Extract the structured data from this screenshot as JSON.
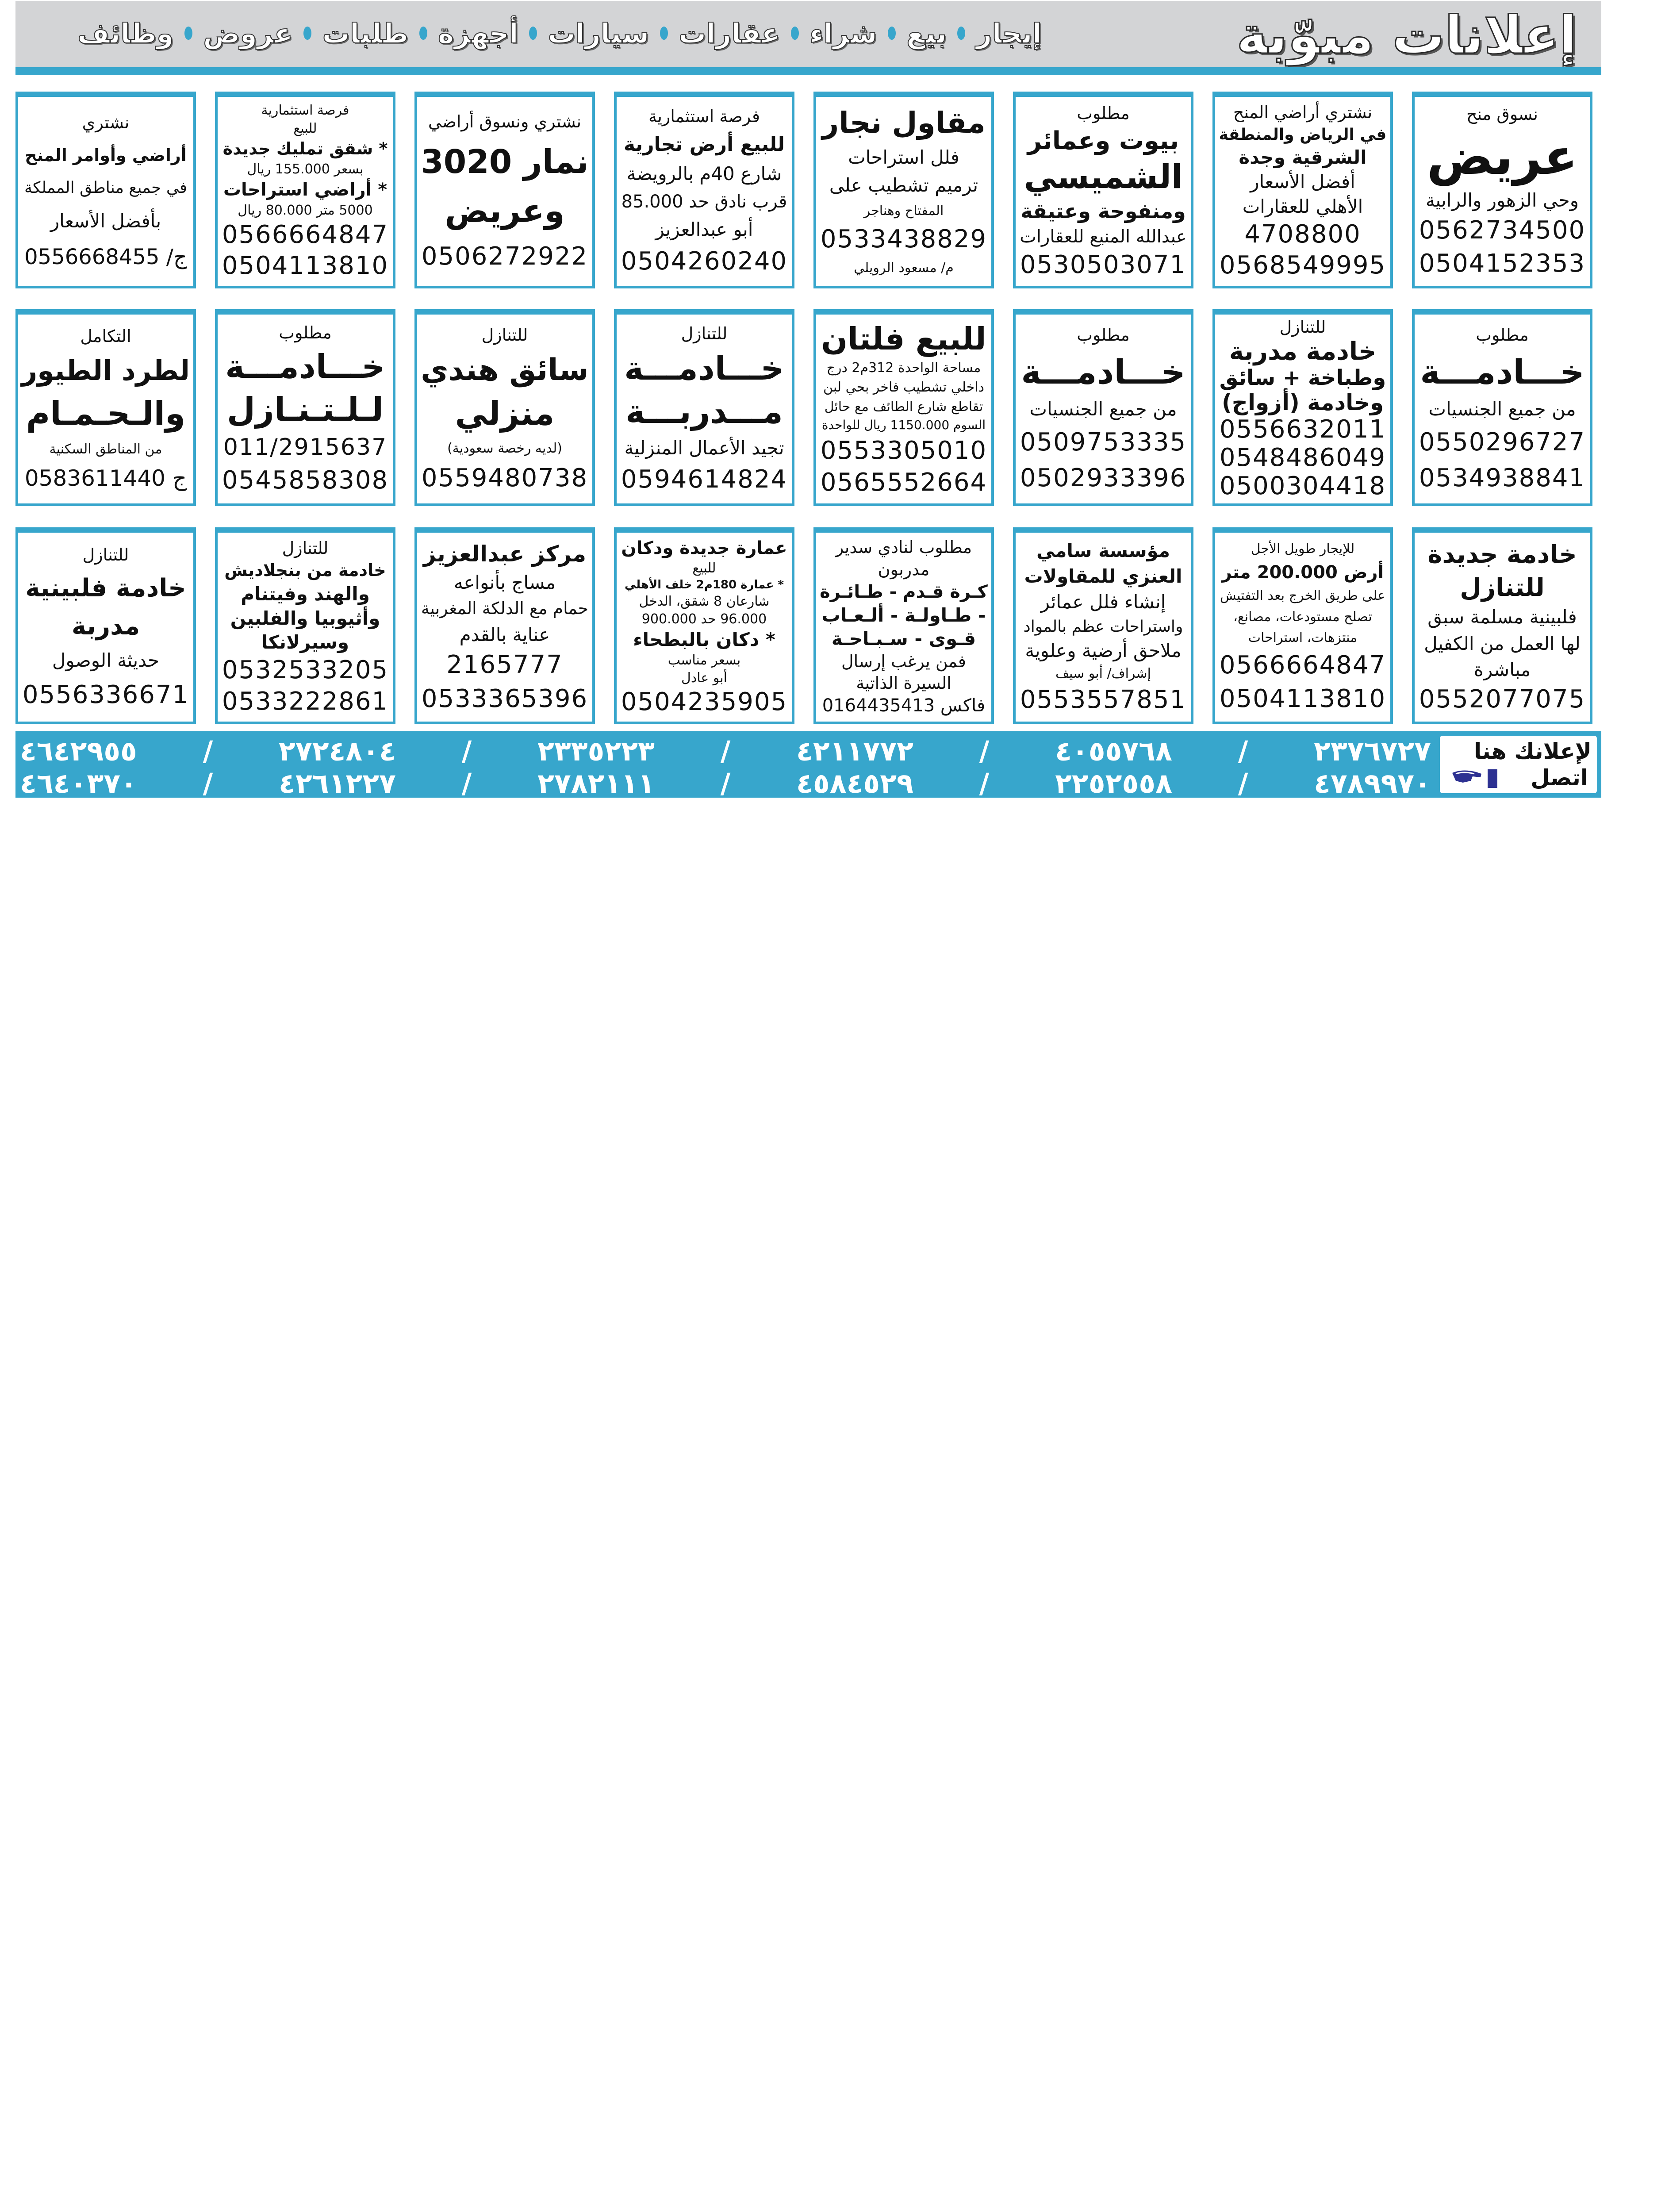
{
  "header": {
    "title": "إعلانات مبوّبة",
    "categories": [
      "إيجار",
      "بيع",
      "شراء",
      "عقارات",
      "سيارات",
      "أجهزة",
      "طلبات",
      "عروض",
      "وظائف"
    ],
    "accent_color": "#37a6cc",
    "band_color": "#d3d4d6"
  },
  "rows": [
    [
      {
        "lines": [
          {
            "t": "نسوق منح",
            "r": "label"
          },
          {
            "t": "عريض",
            "r": "h1"
          },
          {
            "t": "وحي الزهور والرابية",
            "r": "body"
          },
          {
            "t": "0562734500",
            "r": "phone"
          },
          {
            "t": "0504152353",
            "r": "phone"
          }
        ]
      },
      {
        "lines": [
          {
            "t": "نشتري أراضي المنح",
            "r": "label"
          },
          {
            "t": "في الرياض والمنطقة",
            "r": "bold"
          },
          {
            "t": "الشرقية وجدة",
            "r": "bold"
          },
          {
            "t": "أفضل الأسعار",
            "r": "body"
          },
          {
            "t": "الأهلي للعقارات",
            "r": "body"
          },
          {
            "t": "4708800",
            "r": "phone"
          },
          {
            "t": "0568549995",
            "r": "phone"
          }
        ]
      },
      {
        "lines": [
          {
            "t": "مطلوب",
            "r": "label"
          },
          {
            "t": "بيوت وعمائر",
            "r": "h3"
          },
          {
            "t": "الشميسي",
            "r": "h2"
          },
          {
            "t": "ومنفوحة وعتيقة",
            "r": "h3"
          },
          {
            "t": "عبدالله المنيع للعقارات",
            "r": "body"
          },
          {
            "t": "0530503071",
            "r": "phone"
          }
        ]
      },
      {
        "lines": [
          {
            "t": "مقاول نجار",
            "r": "h2"
          },
          {
            "t": "فلل استراحات",
            "r": "body"
          },
          {
            "t": "ترميم تشطيب على",
            "r": "body"
          },
          {
            "t": "المفتاح وهناجر",
            "r": "small"
          },
          {
            "t": "0533438829",
            "r": "phone"
          },
          {
            "t": "م/ مسعود الرويلي",
            "r": "small"
          }
        ]
      },
      {
        "lines": [
          {
            "t": "فرصة استثمارية",
            "r": "label"
          },
          {
            "t": "للبيع أرض تجارية",
            "r": "h3"
          },
          {
            "t": "شارع 40م بالرويضة",
            "r": "body"
          },
          {
            "t": "قرب نادق حد 85.000",
            "r": "body"
          },
          {
            "t": "أبو عبدالعزيز",
            "r": "body"
          },
          {
            "t": "0504260240",
            "r": "phone"
          }
        ]
      },
      {
        "lines": [
          {
            "t": "نشتري ونسوق أراضي",
            "r": "label"
          },
          {
            "t": "نمار 3020",
            "r": "h2"
          },
          {
            "t": "وعريض",
            "r": "h2"
          },
          {
            "t": "0506272922",
            "r": "phone"
          }
        ]
      },
      {
        "lines": [
          {
            "t": "فرصة استثمارية",
            "r": "small"
          },
          {
            "t": "للبيع",
            "r": "small"
          },
          {
            "t": "* شقق تمليك جديدة",
            "r": "bold"
          },
          {
            "t": "بسعر 155.000 ريال",
            "r": "small"
          },
          {
            "t": "* أراضي استراحات",
            "r": "bold"
          },
          {
            "t": "5000 متر 80.000 ريال",
            "r": "small"
          },
          {
            "t": "0566664847",
            "r": "phone"
          },
          {
            "t": "0504113810",
            "r": "phone"
          }
        ]
      },
      {
        "lines": [
          {
            "t": "نشتري",
            "r": "label"
          },
          {
            "t": "أراضي وأوامر المنح",
            "r": "h3"
          },
          {
            "t": "في جميع مناطق المملكة",
            "r": "body"
          },
          {
            "t": "بأفضل الأسعار",
            "r": "body"
          },
          {
            "t": "ج/ 0556668455",
            "r": "phone"
          }
        ]
      }
    ],
    [
      {
        "lines": [
          {
            "t": "مطلوب",
            "r": "label"
          },
          {
            "t": "خـــادمـــة",
            "r": "h1"
          },
          {
            "t": "من جميع الجنسيات",
            "r": "body"
          },
          {
            "t": "0550296727",
            "r": "phone"
          },
          {
            "t": "0534938841",
            "r": "phone"
          }
        ]
      },
      {
        "lines": [
          {
            "t": "للتنازل",
            "r": "label"
          },
          {
            "t": "خادمة مدربة",
            "r": "h3"
          },
          {
            "t": "وطباخة + سائق",
            "r": "h3"
          },
          {
            "t": "وخادمة (أزواج)",
            "r": "h3"
          },
          {
            "t": "0556632011",
            "r": "phone"
          },
          {
            "t": "0548486049",
            "r": "phone"
          },
          {
            "t": "0500304418",
            "r": "phone"
          }
        ]
      },
      {
        "lines": [
          {
            "t": "مطلوب",
            "r": "label"
          },
          {
            "t": "خـــادمـــة",
            "r": "h1"
          },
          {
            "t": "من جميع الجنسيات",
            "r": "body"
          },
          {
            "t": "0509753335",
            "r": "phone"
          },
          {
            "t": "0502933396",
            "r": "phone"
          }
        ]
      },
      {
        "lines": [
          {
            "t": "للبيع فلتان",
            "r": "h2"
          },
          {
            "t": "مساحة الواحدة 312م2 درج",
            "r": "small"
          },
          {
            "t": "داخلي تشطيب فاخر بحي لبن",
            "r": "small"
          },
          {
            "t": "تقاطع شارع الطائف مع حائل",
            "r": "small"
          },
          {
            "t": "السوم 1150.000 ريال للواحدة",
            "r": "small"
          },
          {
            "t": "0553305010",
            "r": "phone"
          },
          {
            "t": "0565552664",
            "r": "phone"
          }
        ]
      },
      {
        "lines": [
          {
            "t": "للتنازل",
            "r": "label"
          },
          {
            "t": "خـــادمـــة",
            "r": "h2"
          },
          {
            "t": "مـــدربـــة",
            "r": "h2"
          },
          {
            "t": "تجيد الأعمال المنزلية",
            "r": "body"
          },
          {
            "t": "0594614824",
            "r": "phone"
          }
        ]
      },
      {
        "lines": [
          {
            "t": "للتنازل",
            "r": "label"
          },
          {
            "t": "سائق هندي",
            "r": "h2"
          },
          {
            "t": "منزلي",
            "r": "h2"
          },
          {
            "t": "(لديه رخصة سعودية)",
            "r": "small"
          },
          {
            "t": "0559480738",
            "r": "phone"
          }
        ]
      },
      {
        "lines": [
          {
            "t": "مطلوب",
            "r": "label"
          },
          {
            "t": "خـــادمـــة",
            "r": "h2"
          },
          {
            "t": "لـلـتـنـازل",
            "r": "h2"
          },
          {
            "t": "011/2915637",
            "r": "phone"
          },
          {
            "t": "0545858308",
            "r": "phone"
          }
        ]
      },
      {
        "lines": [
          {
            "t": "التكامل",
            "r": "label"
          },
          {
            "t": "لطرد الطيور",
            "r": "h2"
          },
          {
            "t": "والـحـمـام",
            "r": "h2"
          },
          {
            "t": "من المناطق السكنية",
            "r": "small"
          },
          {
            "t": "ج 0583611440",
            "r": "phone"
          }
        ]
      }
    ],
    [
      {
        "lines": [
          {
            "t": "خادمة جديدة",
            "r": "h3"
          },
          {
            "t": "للتنازل",
            "r": "h3"
          },
          {
            "t": "فلبينية مسلمة سبق",
            "r": "body"
          },
          {
            "t": "لها العمل من الكفيل",
            "r": "body"
          },
          {
            "t": "مباشرة",
            "r": "body"
          },
          {
            "t": "0552077075",
            "r": "phone"
          }
        ]
      },
      {
        "lines": [
          {
            "t": "للإيجار طويل الأجل",
            "r": "small"
          },
          {
            "t": "أرض 200.000 متر",
            "r": "h3"
          },
          {
            "t": "على طريق الخرج بعد التفتيش",
            "r": "small"
          },
          {
            "t": "تصلح مستودعات، مصانع،",
            "r": "small"
          },
          {
            "t": "منتزهات، استراحات",
            "r": "small"
          },
          {
            "t": "0566664847",
            "r": "phone"
          },
          {
            "t": "0504113810",
            "r": "phone"
          }
        ]
      },
      {
        "lines": [
          {
            "t": "مؤسسة سامي",
            "r": "bold"
          },
          {
            "t": "العنزي للمقاولات",
            "r": "bold"
          },
          {
            "t": "إنشاء فلل عمائر",
            "r": "body"
          },
          {
            "t": "واستراحات عظم بالمواد",
            "r": "body"
          },
          {
            "t": "ملاحق أرضية وعلوية",
            "r": "body"
          },
          {
            "t": "إشراف/ أبو سيف",
            "r": "small"
          },
          {
            "t": "0553557851",
            "r": "phone"
          }
        ]
      },
      {
        "lines": [
          {
            "t": "مطلوب لنادي سدير",
            "r": "label"
          },
          {
            "t": "مدربون",
            "r": "label"
          },
          {
            "t": "كـرة قـدم - طـائـرة",
            "r": "bold"
          },
          {
            "t": "- طـاولـة - ألـعـاب",
            "r": "bold"
          },
          {
            "t": "قـوى - سـبـاحـة",
            "r": "bold"
          },
          {
            "t": "فمن يرغب إرسال",
            "r": "label"
          },
          {
            "t": "السيرة الذاتية",
            "r": "label"
          },
          {
            "t": "فاكس 0164435413",
            "r": "phone"
          }
        ]
      },
      {
        "lines": [
          {
            "t": "عمارة جديدة ودكان",
            "r": "bold"
          },
          {
            "t": "للبيع",
            "r": "small"
          },
          {
            "t": "* عمارة 180م2 خلف الأهلي",
            "r": "bold"
          },
          {
            "t": "شارعان 8 شقق، الدخل",
            "r": "small"
          },
          {
            "t": "96.000 حد 900.000",
            "r": "small"
          },
          {
            "t": "* دكان بالبطحاء",
            "r": "bold"
          },
          {
            "t": "بسعر مناسب",
            "r": "small"
          },
          {
            "t": "أبو عادل",
            "r": "small"
          },
          {
            "t": "0504235905",
            "r": "phone"
          }
        ]
      },
      {
        "lines": [
          {
            "t": "مركز عبدالعزيز",
            "r": "h3"
          },
          {
            "t": "مساج بأنواعه",
            "r": "body"
          },
          {
            "t": "حمام مع الدلكة المغربية",
            "r": "body"
          },
          {
            "t": "عناية بالقدم",
            "r": "body"
          },
          {
            "t": "2165777",
            "r": "phone"
          },
          {
            "t": "0533365396",
            "r": "phone"
          }
        ]
      },
      {
        "lines": [
          {
            "t": "للتنازل",
            "r": "label"
          },
          {
            "t": "خادمة من بنجلاديش",
            "r": "bold"
          },
          {
            "t": "والهند وفيتنام",
            "r": "bold"
          },
          {
            "t": "وأثيوبيا والفلبين",
            "r": "bold"
          },
          {
            "t": "وسيرلانكا",
            "r": "bold"
          },
          {
            "t": "0532533205",
            "r": "phone"
          },
          {
            "t": "0533222861",
            "r": "phone"
          }
        ]
      },
      {
        "lines": [
          {
            "t": "للتنازل",
            "r": "label"
          },
          {
            "t": "خادمة فلبينية",
            "r": "h3"
          },
          {
            "t": "مدربة",
            "r": "h3"
          },
          {
            "t": "حديثة الوصول",
            "r": "body"
          },
          {
            "t": "0556336671",
            "r": "phone"
          }
        ]
      }
    ]
  ],
  "footer": {
    "ad_here": "لإعلانك هنا",
    "call": "اتصل",
    "icon": "phone-icon",
    "numbers_line1": "٢٣٧٦٧٢٧ / ٤٠٥٥٧٦٨ / ٤٢١١٧٧٢ / ٢٣٣٥٢٢٣ / ٢٧٢٤٨٠٤ / ٤٦٤٢٩٥٥",
    "numbers_line2": "٤٧٨٩٩٧٠ / ٢٢٥٢٥٥٨ / ٤٥٨٤٥٢٩ / ٢٧٨٢١١١ / ٤٢٦١٢٢٧ / ٤٦٤٠٣٧٠"
  }
}
